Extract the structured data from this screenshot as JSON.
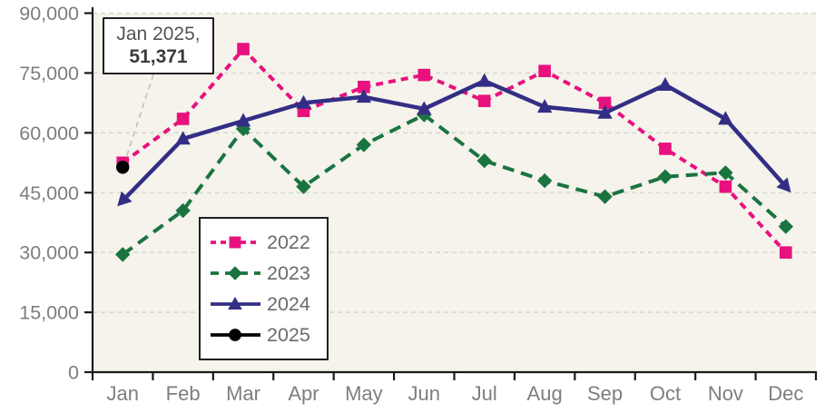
{
  "chart_data": {
    "type": "line",
    "title": "",
    "xlabel": "",
    "ylabel": "",
    "categories": [
      "Jan",
      "Feb",
      "Mar",
      "Apr",
      "May",
      "Jun",
      "Jul",
      "Aug",
      "Sep",
      "Oct",
      "Nov",
      "Dec"
    ],
    "series": [
      {
        "name": "2022",
        "color": "#E8117E",
        "line_style": "dashed",
        "marker": "square",
        "values": [
          52500,
          63500,
          81000,
          65500,
          71500,
          74500,
          68000,
          75500,
          67500,
          56000,
          46500,
          30000
        ]
      },
      {
        "name": "2023",
        "color": "#1A7440",
        "line_style": "dashed",
        "marker": "diamond",
        "values": [
          29500,
          40500,
          61000,
          46500,
          57000,
          64500,
          53000,
          48000,
          44000,
          49000,
          50000,
          36500
        ]
      },
      {
        "name": "2024",
        "color": "#332E85",
        "line_style": "solid",
        "marker": "triangle",
        "arrow_ends": true,
        "values": [
          43000,
          58500,
          63000,
          67500,
          69000,
          66000,
          73000,
          66500,
          65000,
          72000,
          63500,
          46500
        ]
      },
      {
        "name": "2025",
        "color": "#000000",
        "line_style": "solid",
        "marker": "circle",
        "values": [
          51371,
          null,
          null,
          null,
          null,
          null,
          null,
          null,
          null,
          null,
          null,
          null
        ]
      }
    ],
    "ylim": [
      0,
      90000
    ],
    "ytick_step": 15000,
    "ytick_labels": [
      "0",
      "15,000",
      "30,000",
      "45,000",
      "60,000",
      "75,000",
      "90,000"
    ],
    "grid": "horizontal dashed",
    "legend_position": "inside bottom-left",
    "annotation": {
      "text_line1": "Jan 2025,",
      "text_line2": "51,371",
      "series": "2025",
      "category": "Jan"
    }
  },
  "styles": {
    "plot_bg": "#F5F3EB",
    "gridline_color": "#DCDCD6",
    "axis_color": "#1A1A1A",
    "tick_label_color": "#7E7E7E",
    "legend_text_color": "#6B6B6B",
    "annotation_text_color": "#545454",
    "annotation_value_color": "#3B3B3B",
    "leader_line_color": "#C2C0BC"
  }
}
